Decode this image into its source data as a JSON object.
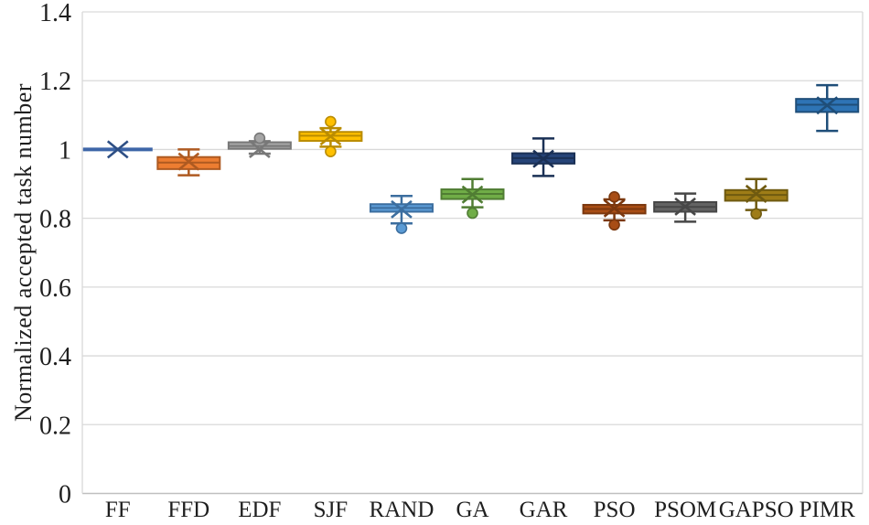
{
  "chart_data": {
    "type": "boxplot",
    "title": "",
    "xlabel": "",
    "ylabel": "Normalized accepted task number",
    "ylim": [
      0,
      1.4
    ],
    "grid": "horizontal-only",
    "legend": "none",
    "yticks": [
      {
        "value": 0,
        "label": "0"
      },
      {
        "value": 0.2,
        "label": "0.2"
      },
      {
        "value": 0.4,
        "label": "0.4"
      },
      {
        "value": 0.6,
        "label": "0.6"
      },
      {
        "value": 0.8,
        "label": "0.8"
      },
      {
        "value": 1,
        "label": "1"
      },
      {
        "value": 1.2,
        "label": "1.2"
      },
      {
        "value": 1.4,
        "label": "1.4"
      }
    ],
    "categories": [
      "FF",
      "FFD",
      "EDF",
      "SJF",
      "RAND",
      "GA",
      "GAR",
      "PSO",
      "PSOM",
      "GAPSO",
      "PIMR"
    ],
    "boxes": [
      {
        "category": "FF",
        "fill": "#3E66A8",
        "stroke": "#2E4F85",
        "q1": 1.0,
        "q3": 1.0,
        "median": 1.0,
        "mean": 1.0,
        "whisker_low": 1.0,
        "whisker_high": 1.0,
        "outliers": []
      },
      {
        "category": "FFD",
        "fill": "#ED7D31",
        "stroke": "#AE5A21",
        "q1": 0.943,
        "q3": 0.978,
        "median": 0.962,
        "mean": 0.965,
        "whisker_low": 0.925,
        "whisker_high": 1.0,
        "outliers": []
      },
      {
        "category": "EDF",
        "fill": "#A5A5A5",
        "stroke": "#787878",
        "q1": 1.002,
        "q3": 1.021,
        "median": 1.01,
        "mean": 1.001,
        "whisker_low": 0.988,
        "whisker_high": 1.024,
        "outliers": [
          1.033
        ]
      },
      {
        "category": "SJF",
        "fill": "#FFC000",
        "stroke": "#BA8C00",
        "q1": 1.025,
        "q3": 1.051,
        "median": 1.04,
        "mean": 1.038,
        "whisker_low": 1.008,
        "whisker_high": 1.062,
        "outliers": [
          1.081,
          0.994
        ]
      },
      {
        "category": "RAND",
        "fill": "#5B9BD5",
        "stroke": "#3C6E9F",
        "q1": 0.819,
        "q3": 0.841,
        "median": 0.83,
        "mean": 0.826,
        "whisker_low": 0.785,
        "whisker_high": 0.865,
        "outliers": [
          0.771
        ]
      },
      {
        "category": "GA",
        "fill": "#70AD47",
        "stroke": "#507D33",
        "q1": 0.856,
        "q3": 0.884,
        "median": 0.871,
        "mean": 0.869,
        "whisker_low": 0.832,
        "whisker_high": 0.914,
        "outliers": [
          0.815
        ]
      },
      {
        "category": "GAR",
        "fill": "#264478",
        "stroke": "#1A3055",
        "q1": 0.959,
        "q3": 0.989,
        "median": 0.975,
        "mean": 0.973,
        "whisker_low": 0.923,
        "whisker_high": 1.032,
        "outliers": []
      },
      {
        "category": "PSO",
        "fill": "#A84D15",
        "stroke": "#7B380F",
        "q1": 0.814,
        "q3": 0.839,
        "median": 0.827,
        "mean": 0.829,
        "whisker_low": 0.794,
        "whisker_high": 0.855,
        "outliers": [
          0.862,
          0.781
        ]
      },
      {
        "category": "PSOM",
        "fill": "#636363",
        "stroke": "#474747",
        "q1": 0.819,
        "q3": 0.847,
        "median": 0.833,
        "mean": 0.834,
        "whisker_low": 0.79,
        "whisker_high": 0.872,
        "outliers": []
      },
      {
        "category": "GAPSO",
        "fill": "#9E7C17",
        "stroke": "#6F5A10",
        "q1": 0.851,
        "q3": 0.882,
        "median": 0.868,
        "mean": 0.871,
        "whisker_low": 0.824,
        "whisker_high": 0.914,
        "outliers": [
          0.813
        ]
      },
      {
        "category": "PIMR",
        "fill": "#2E74B5",
        "stroke": "#1F4E79",
        "q1": 1.109,
        "q3": 1.147,
        "median": 1.13,
        "mean": 1.128,
        "whisker_low": 1.054,
        "whisker_high": 1.187,
        "outliers": []
      }
    ],
    "style_colors": {
      "gridline": "#d9d9d9",
      "axis_line": "#bfbfbf",
      "text": "#1f1f1f",
      "background": "#ffffff"
    }
  }
}
